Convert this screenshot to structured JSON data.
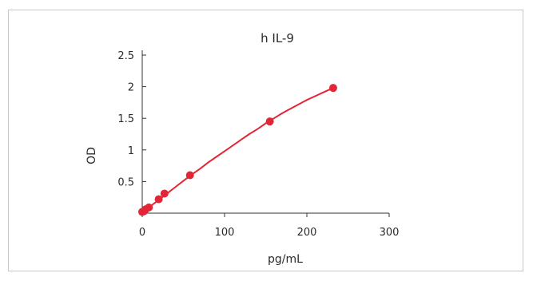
{
  "chart_data": {
    "type": "scatter",
    "title": "h IL-9",
    "xlabel": "pg/mL",
    "ylabel": "OD",
    "xlim": [
      0,
      300
    ],
    "ylim": [
      0,
      2.5
    ],
    "x_ticks": [
      0,
      100,
      200,
      300
    ],
    "y_ticks": [
      0.5,
      1,
      1.5,
      2,
      2.5
    ],
    "grid": false,
    "colors": {
      "series": "#e32636",
      "axis": "#333333"
    },
    "series": [
      {
        "points": [
          {
            "x": 0,
            "y": 0.02
          },
          {
            "x": 2,
            "y": 0.03
          },
          {
            "x": 4,
            "y": 0.06
          },
          {
            "x": 8,
            "y": 0.09
          },
          {
            "x": 20,
            "y": 0.22
          },
          {
            "x": 27,
            "y": 0.31
          },
          {
            "x": 58,
            "y": 0.6
          },
          {
            "x": 155,
            "y": 1.45
          },
          {
            "x": 232,
            "y": 1.98
          }
        ],
        "curve": [
          [
            0,
            0.02
          ],
          [
            10,
            0.11
          ],
          [
            20,
            0.21
          ],
          [
            30,
            0.31
          ],
          [
            40,
            0.41
          ],
          [
            50,
            0.51
          ],
          [
            60,
            0.61
          ],
          [
            70,
            0.7
          ],
          [
            80,
            0.8
          ],
          [
            90,
            0.89
          ],
          [
            100,
            0.98
          ],
          [
            110,
            1.07
          ],
          [
            120,
            1.16
          ],
          [
            130,
            1.25
          ],
          [
            140,
            1.33
          ],
          [
            150,
            1.42
          ],
          [
            160,
            1.5
          ],
          [
            170,
            1.58
          ],
          [
            180,
            1.65
          ],
          [
            190,
            1.72
          ],
          [
            200,
            1.79
          ],
          [
            210,
            1.85
          ],
          [
            220,
            1.91
          ],
          [
            232,
            1.98
          ]
        ]
      }
    ]
  }
}
